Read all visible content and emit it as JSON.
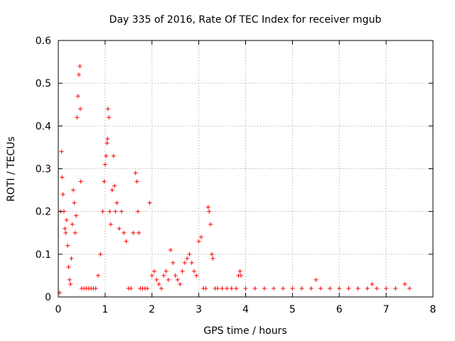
{
  "chart_data": {
    "type": "scatter",
    "title": "Day 335 of 2016, Rate Of TEC Index for receiver mgub",
    "xlabel": "GPS time / hours",
    "ylabel": "ROTI / TECUs",
    "xlim": [
      0,
      8
    ],
    "ylim": [
      0,
      0.6
    ],
    "xticks": [
      "0",
      "1",
      "2",
      "3",
      "4",
      "5",
      "6",
      "7",
      "8"
    ],
    "yticks": [
      "0",
      "0.1",
      "0.2",
      "0.3",
      "0.4",
      "0.5",
      "0.6"
    ],
    "grid": true,
    "marker": "+",
    "color": "#ff0000",
    "series": [
      {
        "x": [
          0.03,
          0.05,
          0.07,
          0.08,
          0.1,
          0.12,
          0.14,
          0.16,
          0.18,
          0.2,
          0.22,
          0.24,
          0.26,
          0.28,
          0.3,
          0.32,
          0.34,
          0.36,
          0.38,
          0.4,
          0.42,
          0.44,
          0.46,
          0.47,
          0.48,
          0.5,
          0.55,
          0.6,
          0.65,
          0.7,
          0.75,
          0.8,
          0.85,
          0.9,
          0.95,
          0.98,
          1.0,
          1.02,
          1.04,
          1.05,
          1.06,
          1.08,
          1.1,
          1.12,
          1.15,
          1.18,
          1.2,
          1.22,
          1.25,
          1.3,
          1.35,
          1.4,
          1.45,
          1.5,
          1.55,
          1.6,
          1.65,
          1.68,
          1.7,
          1.72,
          1.75,
          1.8,
          1.85,
          1.9,
          1.95,
          2.0,
          2.05,
          2.1,
          2.15,
          2.2,
          2.25,
          2.3,
          2.35,
          2.4,
          2.45,
          2.5,
          2.55,
          2.6,
          2.65,
          2.7,
          2.75,
          2.8,
          2.85,
          2.9,
          2.95,
          3.0,
          3.05,
          3.1,
          3.15,
          3.2,
          3.22,
          3.25,
          3.28,
          3.3,
          3.35,
          3.4,
          3.5,
          3.6,
          3.7,
          3.8,
          3.85,
          3.88,
          3.9,
          4.0,
          4.2,
          4.4,
          4.6,
          4.8,
          5.0,
          5.2,
          5.4,
          5.5,
          5.6,
          5.8,
          6.0,
          6.2,
          6.4,
          6.6,
          6.7,
          6.8,
          7.0,
          7.2,
          7.4,
          7.5
        ],
        "y": [
          0.01,
          0.2,
          0.34,
          0.28,
          0.24,
          0.2,
          0.16,
          0.15,
          0.18,
          0.12,
          0.07,
          0.04,
          0.03,
          0.09,
          0.17,
          0.25,
          0.22,
          0.15,
          0.19,
          0.42,
          0.47,
          0.52,
          0.54,
          0.44,
          0.27,
          0.02,
          0.02,
          0.02,
          0.02,
          0.02,
          0.02,
          0.02,
          0.05,
          0.1,
          0.2,
          0.27,
          0.31,
          0.33,
          0.36,
          0.37,
          0.44,
          0.42,
          0.2,
          0.17,
          0.25,
          0.33,
          0.26,
          0.2,
          0.22,
          0.16,
          0.2,
          0.15,
          0.13,
          0.02,
          0.02,
          0.15,
          0.29,
          0.27,
          0.2,
          0.15,
          0.02,
          0.02,
          0.02,
          0.02,
          0.22,
          0.05,
          0.06,
          0.04,
          0.03,
          0.02,
          0.05,
          0.06,
          0.04,
          0.11,
          0.08,
          0.05,
          0.04,
          0.03,
          0.06,
          0.08,
          0.09,
          0.1,
          0.08,
          0.06,
          0.05,
          0.13,
          0.14,
          0.02,
          0.02,
          0.21,
          0.2,
          0.17,
          0.1,
          0.09,
          0.02,
          0.02,
          0.02,
          0.02,
          0.02,
          0.02,
          0.05,
          0.06,
          0.05,
          0.02,
          0.02,
          0.02,
          0.02,
          0.02,
          0.02,
          0.02,
          0.02,
          0.04,
          0.02,
          0.02,
          0.02,
          0.02,
          0.02,
          0.02,
          0.03,
          0.02,
          0.02,
          0.02,
          0.03,
          0.02
        ]
      }
    ]
  }
}
